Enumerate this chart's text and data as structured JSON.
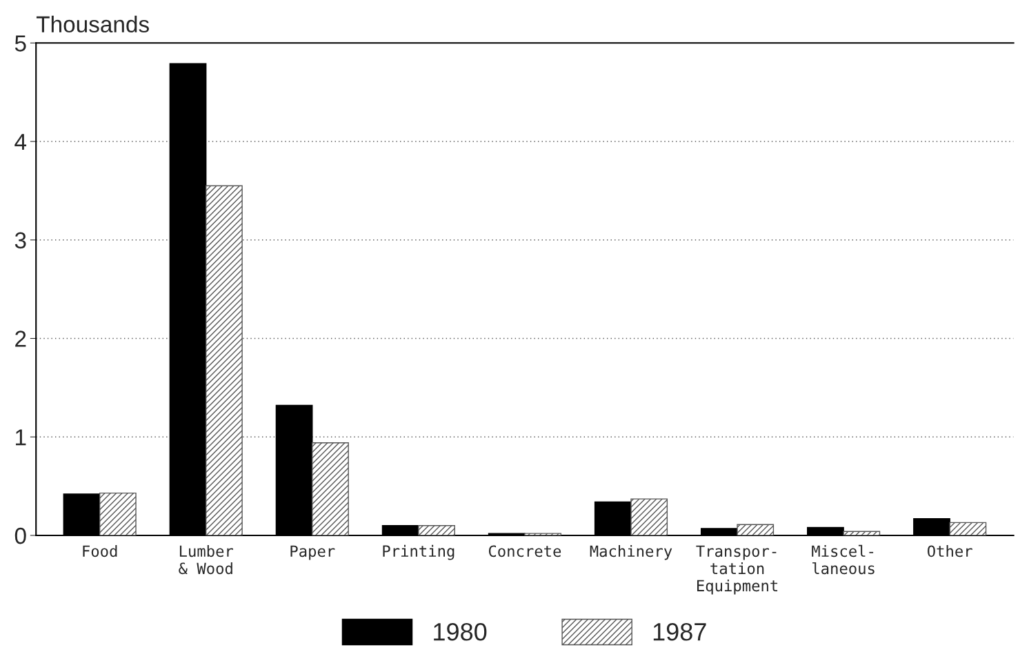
{
  "chart_data": {
    "type": "bar",
    "ylabel": "Thousands",
    "categories": [
      "Food",
      "Lumber\n& Wood",
      "Paper",
      "Printing",
      "Concrete",
      "Machinery",
      "Transpor-\ntation\nEquipment",
      "Miscel-\nlaneous",
      "Other"
    ],
    "series": [
      {
        "name": "1980",
        "color": "#000000",
        "values": [
          0.42,
          4.79,
          1.32,
          0.1,
          0.02,
          0.34,
          0.07,
          0.08,
          0.17
        ]
      },
      {
        "name": "1987",
        "color": "#555555",
        "values": [
          0.43,
          3.55,
          0.94,
          0.1,
          0.02,
          0.37,
          0.11,
          0.04,
          0.13
        ]
      }
    ],
    "ylim": [
      0,
      5
    ],
    "yticks": [
      0,
      1,
      2,
      3,
      4,
      5
    ],
    "grid": "y",
    "legend": "bottom"
  }
}
